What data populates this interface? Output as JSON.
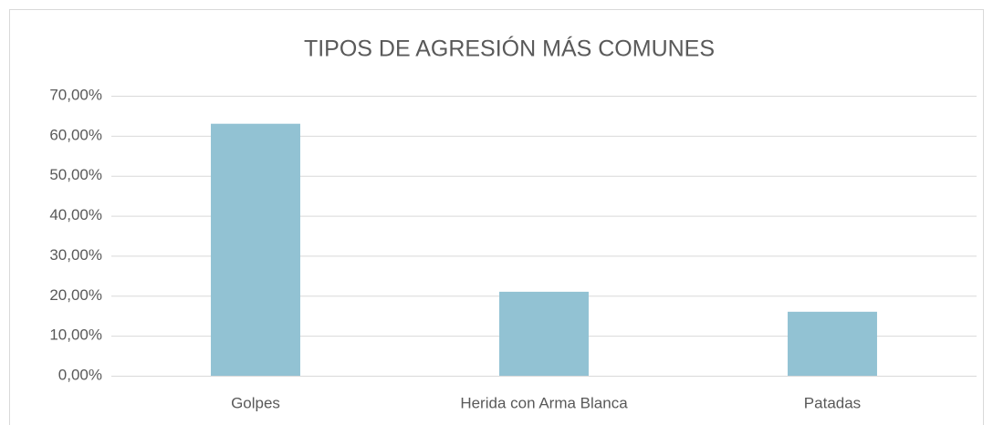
{
  "chart_data": {
    "type": "bar",
    "title": "TIPOS DE AGRESIÓN MÁS COMUNES",
    "categories": [
      "Golpes",
      "Herida con Arma Blanca",
      "Patadas"
    ],
    "values": [
      63,
      21,
      16
    ],
    "color": "#92c2d3",
    "ylim": [
      0,
      70
    ],
    "yticks": [
      {
        "value": 0,
        "label": "0,00%"
      },
      {
        "value": 10,
        "label": "10,00%"
      },
      {
        "value": 20,
        "label": "20,00%"
      },
      {
        "value": 30,
        "label": "30,00%"
      },
      {
        "value": 40,
        "label": "40,00%"
      },
      {
        "value": 50,
        "label": "50,00%"
      },
      {
        "value": 60,
        "label": "60,00%"
      },
      {
        "value": 70,
        "label": "70,00%"
      }
    ],
    "grid": true
  }
}
